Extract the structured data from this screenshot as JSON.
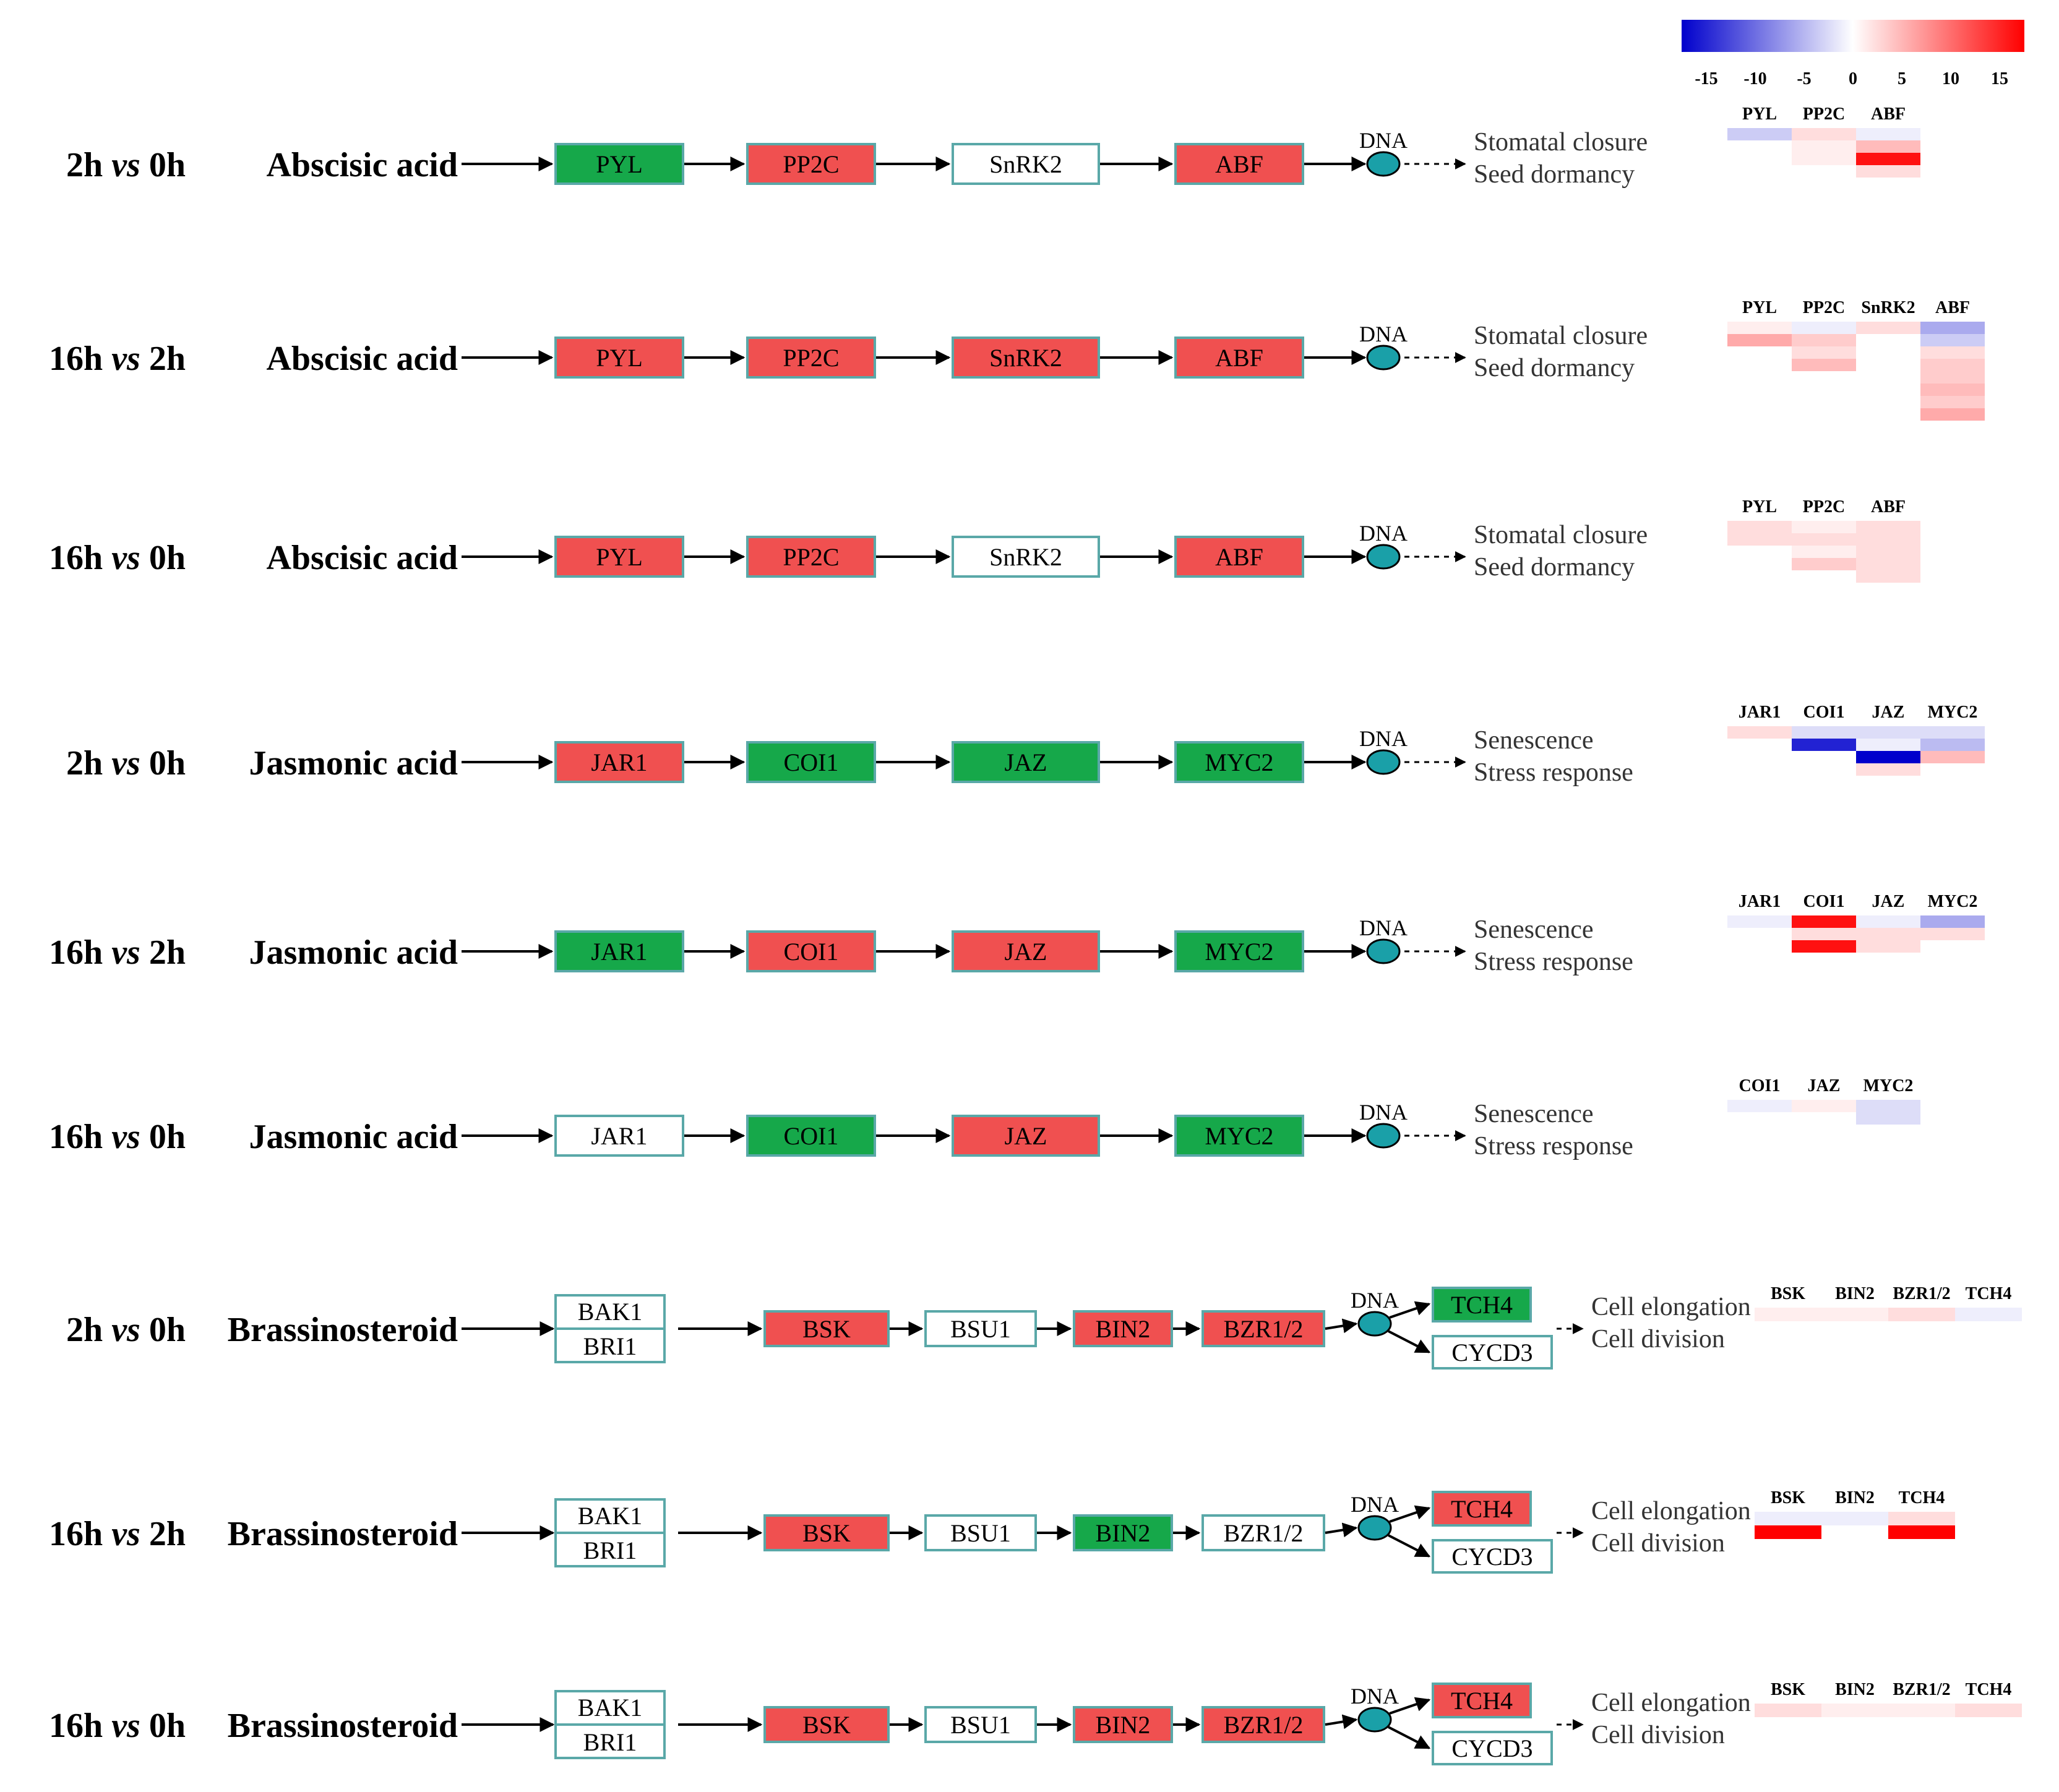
{
  "colors": {
    "up": "#f05050",
    "down": "#16a84a",
    "none": "#ffffff",
    "box_border": "#5aa8a8",
    "dna": "#1aa0a8",
    "scale_low": "#0000cc",
    "scale_mid": "#ffffff",
    "scale_high": "#ff0000"
  },
  "dna_label": "DNA",
  "color_scale": {
    "ticks": [
      "-15",
      "-10",
      "-5",
      "0",
      "5",
      "10",
      "15"
    ],
    "range": [
      -15,
      15
    ]
  },
  "rows": [
    {
      "comparison": [
        "2h ",
        "vs",
        " 0h"
      ],
      "hormone": "Abscisic acid",
      "genes": [
        {
          "label": "PYL",
          "status": "down"
        },
        {
          "label": "PP2C",
          "status": "up"
        },
        {
          "label": "SnRK2",
          "status": "none"
        },
        {
          "label": "ABF",
          "status": "up"
        }
      ],
      "outcomes": [
        "Stomatal closure",
        "Seed dormancy"
      ],
      "heatmap": {
        "labels": [
          "PYL",
          "PP2C",
          "ABF"
        ],
        "columns": [
          [
            -3
          ],
          [
            2,
            1,
            1
          ],
          [
            -1,
            4,
            14,
            2
          ]
        ]
      }
    },
    {
      "comparison": [
        "16h ",
        "vs",
        " 2h"
      ],
      "hormone": "Abscisic acid",
      "genes": [
        {
          "label": "PYL",
          "status": "up"
        },
        {
          "label": "PP2C",
          "status": "up"
        },
        {
          "label": "SnRK2",
          "status": "up"
        },
        {
          "label": "ABF",
          "status": "up"
        }
      ],
      "outcomes": [
        "Stomatal closure",
        "Seed dormancy"
      ],
      "heatmap": {
        "labels": [
          "PYL",
          "PP2C",
          "SnRK2",
          "ABF"
        ],
        "columns": [
          [
            1,
            5
          ],
          [
            -1,
            3,
            2,
            4
          ],
          [
            2
          ],
          [
            -5,
            -3,
            2,
            3,
            3,
            4,
            3,
            5
          ]
        ]
      }
    },
    {
      "comparison": [
        "16h ",
        "vs",
        " 0h"
      ],
      "hormone": "Abscisic acid",
      "genes": [
        {
          "label": "PYL",
          "status": "up"
        },
        {
          "label": "PP2C",
          "status": "up"
        },
        {
          "label": "SnRK2",
          "status": "none"
        },
        {
          "label": "ABF",
          "status": "up"
        }
      ],
      "outcomes": [
        "Stomatal closure",
        "Seed dormancy"
      ],
      "heatmap": {
        "labels": [
          "PYL",
          "PP2C",
          "ABF"
        ],
        "columns": [
          [
            2,
            2
          ],
          [
            1,
            2,
            1,
            3
          ],
          [
            2,
            2,
            2,
            2,
            2
          ]
        ]
      }
    },
    {
      "comparison": [
        "2h ",
        "vs",
        " 0h"
      ],
      "hormone": "Jasmonic acid",
      "genes": [
        {
          "label": "JAR1",
          "status": "up"
        },
        {
          "label": "COI1",
          "status": "down"
        },
        {
          "label": "JAZ",
          "status": "down"
        },
        {
          "label": "MYC2",
          "status": "down"
        }
      ],
      "outcomes": [
        "Senescence",
        "Stress response"
      ],
      "heatmap": {
        "labels": [
          "JAR1",
          "COI1",
          "JAZ",
          "MYC2"
        ],
        "columns": [
          [
            2
          ],
          [
            -2,
            -13
          ],
          [
            -2,
            -1,
            -15,
            2
          ],
          [
            -2,
            -4,
            4
          ]
        ]
      }
    },
    {
      "comparison": [
        "16h ",
        "vs",
        " 2h"
      ],
      "hormone": "Jasmonic acid",
      "genes": [
        {
          "label": "JAR1",
          "status": "down"
        },
        {
          "label": "COI1",
          "status": "up"
        },
        {
          "label": "JAZ",
          "status": "up"
        },
        {
          "label": "MYC2",
          "status": "down"
        }
      ],
      "outcomes": [
        "Senescence",
        "Stress response"
      ],
      "heatmap": {
        "labels": [
          "JAR1",
          "COI1",
          "JAZ",
          "MYC2"
        ],
        "columns": [
          [
            -1
          ],
          [
            14,
            2,
            14
          ],
          [
            -1,
            2,
            2
          ],
          [
            -5,
            2
          ]
        ]
      }
    },
    {
      "comparison": [
        "16h ",
        "vs",
        " 0h"
      ],
      "hormone": "Jasmonic acid",
      "genes": [
        {
          "label": "JAR1",
          "status": "none"
        },
        {
          "label": "COI1",
          "status": "down"
        },
        {
          "label": "JAZ",
          "status": "up"
        },
        {
          "label": "MYC2",
          "status": "down"
        }
      ],
      "outcomes": [
        "Senescence",
        "Stress response"
      ],
      "heatmap": {
        "labels": [
          "COI1",
          "JAZ",
          "MYC2"
        ],
        "columns": [
          [
            -1
          ],
          [
            1
          ],
          [
            -2,
            -2
          ]
        ]
      }
    },
    {
      "comparison": [
        "2h ",
        "vs",
        " 0h"
      ],
      "hormone": "Brassinosteroid",
      "receptor": [
        "BAK1",
        "BRI1"
      ],
      "genes": [
        {
          "label": "BSK",
          "status": "up"
        },
        {
          "label": "BSU1",
          "status": "none"
        },
        {
          "label": "BIN2",
          "status": "up"
        },
        {
          "label": "BZR1/2",
          "status": "up"
        }
      ],
      "targets": [
        {
          "label": "TCH4",
          "status": "down"
        },
        {
          "label": "CYCD3",
          "status": "none"
        }
      ],
      "outcomes": [
        "Cell elongation",
        "Cell division"
      ],
      "heatmap": {
        "labels": [
          "BSK",
          "BIN2",
          "BZR1/2",
          "TCH4"
        ],
        "columns": [
          [
            1
          ],
          [
            1
          ],
          [
            2
          ],
          [
            -1
          ]
        ]
      }
    },
    {
      "comparison": [
        "16h ",
        "vs",
        " 2h"
      ],
      "hormone": "Brassinosteroid",
      "receptor": [
        "BAK1",
        "BRI1"
      ],
      "genes": [
        {
          "label": "BSK",
          "status": "up"
        },
        {
          "label": "BSU1",
          "status": "none"
        },
        {
          "label": "BIN2",
          "status": "down"
        },
        {
          "label": "BZR1/2",
          "status": "none"
        }
      ],
      "targets": [
        {
          "label": "TCH4",
          "status": "up"
        },
        {
          "label": "CYCD3",
          "status": "none"
        }
      ],
      "outcomes": [
        "Cell elongation",
        "Cell division"
      ],
      "heatmap": {
        "labels": [
          "BSK",
          "BIN2",
          "TCH4"
        ],
        "columns": [
          [
            -1,
            15
          ],
          [
            -1
          ],
          [
            2,
            15
          ]
        ]
      }
    },
    {
      "comparison": [
        "16h ",
        "vs",
        " 0h"
      ],
      "hormone": "Brassinosteroid",
      "receptor": [
        "BAK1",
        "BRI1"
      ],
      "genes": [
        {
          "label": "BSK",
          "status": "up"
        },
        {
          "label": "BSU1",
          "status": "none"
        },
        {
          "label": "BIN2",
          "status": "up"
        },
        {
          "label": "BZR1/2",
          "status": "up"
        }
      ],
      "targets": [
        {
          "label": "TCH4",
          "status": "up"
        },
        {
          "label": "CYCD3",
          "status": "none"
        }
      ],
      "outcomes": [
        "Cell elongation",
        "Cell division"
      ],
      "heatmap": {
        "labels": [
          "BSK",
          "BIN2",
          "BZR1/2",
          "TCH4"
        ],
        "columns": [
          [
            2
          ],
          [
            1
          ],
          [
            1
          ],
          [
            2
          ]
        ]
      }
    }
  ]
}
